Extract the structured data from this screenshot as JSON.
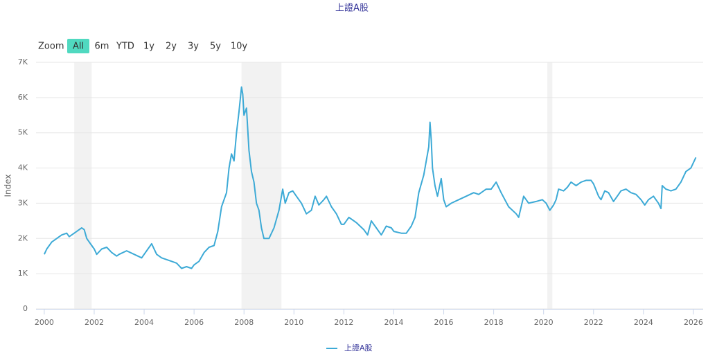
{
  "chart_data": {
    "type": "line",
    "title": "上證A股",
    "y_label": "Index",
    "range_selector": {
      "label": "Zoom",
      "buttons": [
        "All",
        "6m",
        "YTD",
        "1y",
        "2y",
        "3y",
        "5y",
        "10y"
      ],
      "selected": 0
    },
    "plot_bands": [
      {
        "from": 2001.2,
        "to": 2001.9
      },
      {
        "from": 2007.9,
        "to": 2009.5
      },
      {
        "from": 2020.15,
        "to": 2020.35
      }
    ],
    "xlim": [
      1999.67,
      2026.39
    ],
    "xticks": [
      2000,
      2002,
      2004,
      2006,
      2008,
      2010,
      2012,
      2014,
      2016,
      2018,
      2020,
      2022,
      2024,
      2026
    ],
    "ylim": [
      0,
      7000
    ],
    "yticks": [
      0,
      {
        "value": 1000,
        "label": "1K"
      },
      {
        "value": 2000,
        "label": "2K"
      },
      {
        "value": 3000,
        "label": "3K"
      },
      {
        "value": 4000,
        "label": "4K"
      },
      {
        "value": 5000,
        "label": "5K"
      },
      {
        "value": 6000,
        "label": "6K"
      },
      {
        "value": 7000,
        "label": "7K"
      }
    ],
    "grid": true,
    "x": [
      2000.0,
      2000.1,
      2000.3,
      2000.5,
      2000.7,
      2000.9,
      2001.0,
      2001.2,
      2001.4,
      2001.5,
      2001.6,
      2001.7,
      2001.8,
      2001.9,
      2002.0,
      2002.1,
      2002.3,
      2002.5,
      2002.7,
      2002.9,
      2003.0,
      2003.3,
      2003.6,
      2003.9,
      2004.0,
      2004.2,
      2004.3,
      2004.5,
      2004.7,
      2004.9,
      2005.1,
      2005.3,
      2005.5,
      2005.7,
      2005.9,
      2006.0,
      2006.2,
      2006.4,
      2006.6,
      2006.8,
      2006.95,
      2007.1,
      2007.3,
      2007.4,
      2007.5,
      2007.6,
      2007.7,
      2007.8,
      2007.9,
      2007.95,
      2008.0,
      2008.1,
      2008.2,
      2008.3,
      2008.4,
      2008.5,
      2008.6,
      2008.7,
      2008.8,
      2008.9,
      2009.0,
      2009.2,
      2009.4,
      2009.55,
      2009.65,
      2009.8,
      2009.95,
      2010.1,
      2010.3,
      2010.5,
      2010.7,
      2010.85,
      2011.0,
      2011.2,
      2011.3,
      2011.5,
      2011.7,
      2011.9,
      2012.0,
      2012.2,
      2012.5,
      2012.8,
      2012.95,
      2013.1,
      2013.3,
      2013.5,
      2013.7,
      2013.9,
      2014.0,
      2014.3,
      2014.5,
      2014.7,
      2014.85,
      2015.0,
      2015.2,
      2015.4,
      2015.45,
      2015.5,
      2015.55,
      2015.65,
      2015.75,
      2015.9,
      2016.0,
      2016.1,
      2016.3,
      2016.6,
      2016.9,
      2017.2,
      2017.4,
      2017.7,
      2017.9,
      2018.0,
      2018.1,
      2018.3,
      2018.6,
      2018.9,
      2019.0,
      2019.2,
      2019.4,
      2019.7,
      2019.95,
      2020.1,
      2020.25,
      2020.4,
      2020.5,
      2020.6,
      2020.8,
      2020.95,
      2021.1,
      2021.3,
      2021.5,
      2021.7,
      2021.9,
      2022.0,
      2022.2,
      2022.3,
      2022.45,
      2022.6,
      2022.8,
      2022.95,
      2023.1,
      2023.3,
      2023.5,
      2023.7,
      2023.9,
      2024.05,
      2024.2,
      2024.4,
      2024.6,
      2024.7,
      2024.75,
      2024.9,
      2025.1,
      2025.3,
      2025.5,
      2025.7,
      2025.9,
      2026.0,
      2026.1
    ],
    "series": [
      {
        "name": "上證A股",
        "color": "#3daad6",
        "values": [
          1550,
          1700,
          1900,
          2000,
          2100,
          2150,
          2050,
          2150,
          2250,
          2300,
          2250,
          2000,
          1900,
          1800,
          1700,
          1550,
          1700,
          1750,
          1600,
          1500,
          1550,
          1650,
          1550,
          1450,
          1550,
          1750,
          1850,
          1550,
          1450,
          1400,
          1350,
          1300,
          1150,
          1200,
          1150,
          1250,
          1350,
          1600,
          1750,
          1800,
          2200,
          2900,
          3300,
          4000,
          4400,
          4200,
          5000,
          5600,
          6300,
          6100,
          5500,
          5700,
          4500,
          3900,
          3600,
          3000,
          2800,
          2300,
          2000,
          2000,
          2000,
          2300,
          2800,
          3400,
          3000,
          3300,
          3350,
          3200,
          3000,
          2700,
          2800,
          3200,
          2950,
          3100,
          3200,
          2900,
          2700,
          2400,
          2400,
          2600,
          2450,
          2250,
          2100,
          2500,
          2300,
          2100,
          2350,
          2300,
          2200,
          2150,
          2150,
          2350,
          2600,
          3300,
          3800,
          4600,
          5300,
          4800,
          4000,
          3500,
          3200,
          3700,
          3100,
          2900,
          3000,
          3100,
          3200,
          3300,
          3250,
          3400,
          3400,
          3500,
          3600,
          3300,
          2900,
          2700,
          2600,
          3200,
          3000,
          3050,
          3100,
          3000,
          2800,
          2950,
          3100,
          3400,
          3350,
          3450,
          3600,
          3500,
          3600,
          3650,
          3650,
          3550,
          3200,
          3100,
          3350,
          3300,
          3050,
          3200,
          3350,
          3400,
          3300,
          3250,
          3100,
          2950,
          3100,
          3200,
          3000,
          2850,
          3500,
          3400,
          3350,
          3400,
          3600,
          3900,
          4000,
          4150,
          4300
        ]
      }
    ]
  }
}
